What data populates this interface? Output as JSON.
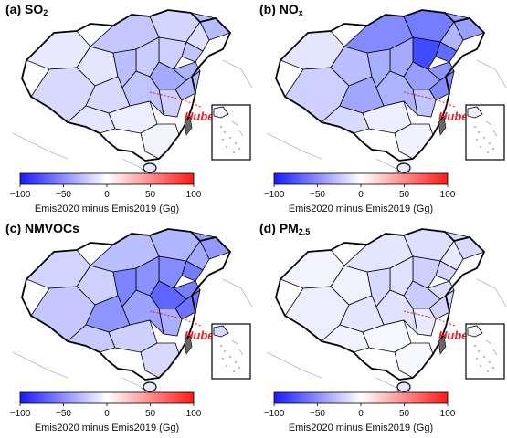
{
  "panels": [
    {
      "id": "a",
      "title": "(a) SO",
      "title_sub": "2",
      "province_level": [
        0.1,
        0.18,
        0.12,
        0.26,
        0.2,
        0.32,
        0.15,
        0.28,
        0.22,
        0.36,
        0.24,
        0.3,
        0.18,
        0.4,
        0.34,
        0.12,
        0.08,
        0.05,
        0.22,
        0.28
      ]
    },
    {
      "id": "b",
      "title": "(b) NO",
      "title_sub": "x",
      "province_level": [
        0.12,
        0.22,
        0.3,
        0.55,
        0.62,
        0.45,
        0.35,
        0.7,
        0.85,
        0.5,
        0.4,
        0.38,
        0.42,
        0.46,
        0.55,
        0.18,
        0.08,
        0.06,
        0.28,
        0.36
      ]
    },
    {
      "id": "c",
      "title": "(c) NMVOCs",
      "title_sub": "",
      "province_level": [
        0.2,
        0.26,
        0.22,
        0.3,
        0.35,
        0.48,
        0.4,
        0.62,
        0.55,
        0.6,
        0.52,
        0.58,
        0.5,
        0.72,
        0.66,
        0.25,
        0.22,
        0.18,
        0.38,
        0.44
      ]
    },
    {
      "id": "d",
      "title": "(d) PM",
      "title_sub": "2.5",
      "province_level": [
        0.05,
        0.08,
        0.06,
        0.12,
        0.15,
        0.18,
        0.1,
        0.2,
        0.22,
        0.16,
        0.14,
        0.18,
        0.12,
        0.24,
        0.2,
        0.06,
        0.04,
        0.03,
        0.1,
        0.14
      ]
    }
  ],
  "hubei_label": "Hubei",
  "colorbar": {
    "ticks": [
      -100,
      -50,
      0,
      50,
      100
    ],
    "tick_labels": [
      "−100",
      "−50",
      "0",
      "50",
      "100"
    ],
    "caption": "Emis2020 minus Emis2019 (Gg)",
    "color_min": "#1a1aff",
    "color_mid": "#ffffff",
    "color_max": "#ff1a1a"
  },
  "colors": {
    "province_fill_base": "#ffffff",
    "province_fill_strong": "#1f2bff",
    "border": "#000000",
    "hubei_line": "#e8212b",
    "taiwan": "#666666"
  }
}
